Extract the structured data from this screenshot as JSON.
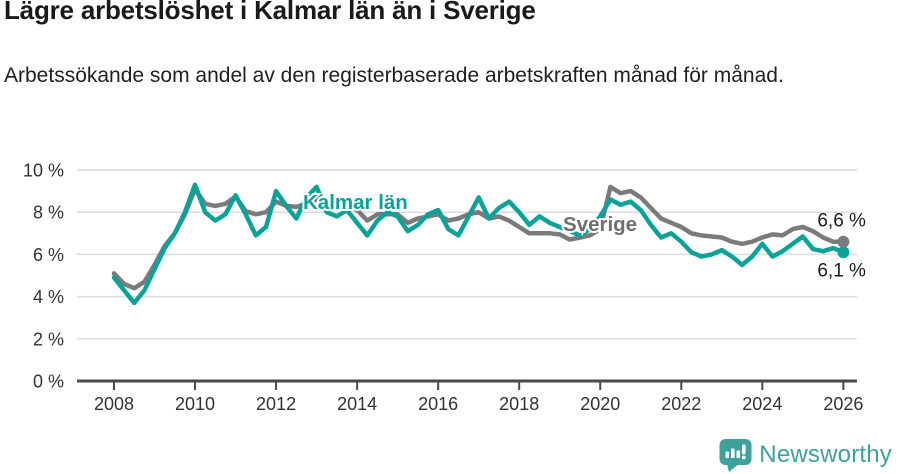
{
  "header": {
    "title": "Lägre arbetslöshet i Kalmar län än i Sverige",
    "subtitle": "Arbetssökande som andel av den registerbaserade arbetskraften månad för månad."
  },
  "chart_data": {
    "type": "line",
    "title": "Lägre arbetslöshet i Kalmar län än i Sverige",
    "xlabel": "",
    "ylabel": "",
    "x_unit": "year (monthly series shown, sampled quarterly)",
    "x_start": 2008.0,
    "x_step": 0.25,
    "x_end": 2026.0,
    "xlim": [
      2007.1,
      2026.35
    ],
    "ylim": [
      0,
      10
    ],
    "grid": "horizontal",
    "x_ticks": [
      2008,
      2010,
      2012,
      2014,
      2016,
      2018,
      2020,
      2022,
      2024,
      2026
    ],
    "y_ticks": [
      {
        "value": 0,
        "label": "0 %"
      },
      {
        "value": 2,
        "label": "2 %"
      },
      {
        "value": 4,
        "label": "4 %"
      },
      {
        "value": 6,
        "label": "6 %"
      },
      {
        "value": 8,
        "label": "8 %"
      },
      {
        "value": 10,
        "label": "10 %"
      }
    ],
    "legend_position": "inline-labels",
    "series": [
      {
        "name": "Kalmar län",
        "color": "#0ba29a",
        "label_color": "#0ba29a",
        "end_label": "6,1 %",
        "end_value": 6.1,
        "values": [
          4.9,
          4.3,
          3.7,
          4.3,
          5.3,
          6.3,
          7.0,
          8.0,
          9.3,
          8.0,
          7.6,
          7.9,
          8.8,
          7.9,
          6.9,
          7.3,
          9.0,
          8.3,
          7.7,
          8.7,
          9.2,
          8.0,
          7.8,
          8.1,
          7.5,
          6.9,
          7.6,
          8.0,
          7.8,
          7.1,
          7.4,
          7.9,
          8.1,
          7.2,
          6.9,
          7.8,
          8.7,
          7.7,
          8.2,
          8.5,
          8.0,
          7.4,
          7.8,
          7.5,
          7.3,
          7.1,
          6.9,
          7.2,
          7.8,
          8.6,
          8.35,
          8.5,
          8.1,
          7.4,
          6.8,
          7.0,
          6.6,
          6.1,
          5.9,
          6.0,
          6.2,
          5.9,
          5.5,
          5.9,
          6.5,
          5.9,
          6.15,
          6.5,
          6.85,
          6.25,
          6.15,
          6.3,
          6.1
        ]
      },
      {
        "name": "Sverige",
        "color": "#7b7b7b",
        "label_color": "#6e6e6e",
        "end_label": "6,6 %",
        "end_value": 6.6,
        "values": [
          5.1,
          4.6,
          4.4,
          4.7,
          5.5,
          6.4,
          7.0,
          7.9,
          9.1,
          8.4,
          8.3,
          8.4,
          8.75,
          8.05,
          7.9,
          8.0,
          8.5,
          8.3,
          8.25,
          8.4,
          8.6,
          8.4,
          8.3,
          8.3,
          8.1,
          7.6,
          7.9,
          7.9,
          7.9,
          7.5,
          7.7,
          7.8,
          7.9,
          7.6,
          7.7,
          7.9,
          8.0,
          7.7,
          7.8,
          7.6,
          7.3,
          7.0,
          7.0,
          7.0,
          6.95,
          6.7,
          6.8,
          6.9,
          7.2,
          9.2,
          8.9,
          9.0,
          8.7,
          8.2,
          7.7,
          7.5,
          7.3,
          7.0,
          6.9,
          6.85,
          6.8,
          6.6,
          6.5,
          6.6,
          6.8,
          6.95,
          6.9,
          7.2,
          7.3,
          7.1,
          6.8,
          6.6,
          6.6
        ]
      }
    ]
  },
  "footer": {
    "brand": "Newsworthy",
    "logo_color": "#3ea19b"
  }
}
